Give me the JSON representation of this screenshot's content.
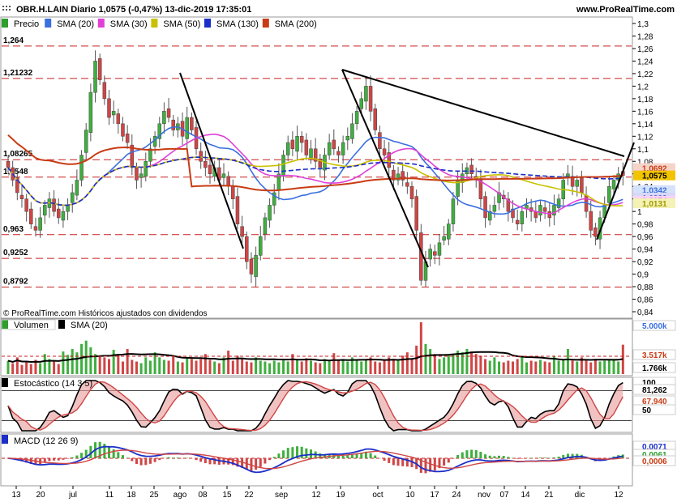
{
  "header": {
    "title": "OBR.H.LAIN Diario 1,0575 (-0,47%) 13-dic-2019 17:35:01",
    "site": "www.ProRealTime.com"
  },
  "price_panel": {
    "legend": [
      {
        "label": "Precio",
        "color": "#2e9e2e"
      },
      {
        "label": "SMA (20)",
        "color": "#3b6fe0"
      },
      {
        "label": "SMA (30)",
        "color": "#e040d8"
      },
      {
        "label": "SMA (50)",
        "color": "#c8c000"
      },
      {
        "label": "SMA (130)",
        "color": "#1a2ec8"
      },
      {
        "label": "SMA (200)",
        "color": "#c83c14"
      }
    ],
    "copyright": "© ProRealTime.com Históricos ajustados con dividendos",
    "levels": [
      {
        "label": "1,264",
        "value": 1.264
      },
      {
        "label": "1,21232",
        "value": 1.21232
      },
      {
        "label": "1,08265",
        "value": 1.08265
      },
      {
        "label": "1,0548",
        "value": 1.0548
      },
      {
        "label": "0,963",
        "value": 0.963
      },
      {
        "label": "0,9252",
        "value": 0.9252
      },
      {
        "label": "0,8792",
        "value": 0.8792
      }
    ],
    "right_badges": [
      {
        "label": "1,0692",
        "value": 1.0692,
        "bg": "#f6d4c8",
        "color": "#c83c14"
      },
      {
        "label": "1,0575",
        "value": 1.0575,
        "bg": "#f2c400",
        "color": "#000000"
      },
      {
        "label": "1,0342",
        "value": 1.0342,
        "bg": "#d6e2fb",
        "color": "#3b6fe0"
      },
      {
        "label": "1,0222",
        "value": 1.0222,
        "bg": "#d6d8f6",
        "color": "#1a2ec8"
      },
      {
        "label": "1,0174",
        "value": 1.0174,
        "bg": "#f6d4f4",
        "color": "#e040d8"
      },
      {
        "label": "1,0131",
        "value": 1.0131,
        "bg": "#f4f2b4",
        "color": "#a09a00"
      }
    ]
  },
  "volume_panel": {
    "legend": [
      {
        "label": "Volumen",
        "color": "#2e9e2e"
      },
      {
        "label": "SMA (20)",
        "color": "#000000"
      }
    ],
    "badges": [
      {
        "label": "5.000k",
        "color": "#3b6fe0"
      },
      {
        "label": "3.517k",
        "color": "#c83c14"
      },
      {
        "label": "1.766k",
        "color": "#000000"
      }
    ]
  },
  "stoch_panel": {
    "legend": "Estocástico (14 3 5)",
    "badges": [
      {
        "label": "100",
        "color": "#000000"
      },
      {
        "label": "81,262",
        "color": "#000000"
      },
      {
        "label": "67,940",
        "color": "#c83c14"
      },
      {
        "label": "50",
        "color": "#000000"
      }
    ]
  },
  "macd_panel": {
    "legend": "MACD (12 26 9)",
    "badges": [
      {
        "label": "0,0071",
        "color": "#1a2ec8"
      },
      {
        "label": "0,0061",
        "color": "#2e9e2e"
      },
      {
        "label": "0,0006",
        "color": "#c83c14"
      }
    ]
  },
  "chart_data": {
    "type": "candlestick",
    "title": "OBR.H.LAIN Diario",
    "x_tick_labels": [
      "13",
      "20",
      "jul",
      "11",
      "18",
      "25",
      "ago",
      "08",
      "15",
      "22",
      "sep",
      "12",
      "19",
      "oct",
      "10",
      "17",
      "24",
      "nov",
      "07",
      "14",
      "21",
      "dic",
      "12"
    ],
    "ylim": [
      0.84,
      1.3
    ],
    "y_ticks": [
      "0,84",
      "0,86",
      "0,88",
      "0,9",
      "0,92",
      "0,94",
      "0,96",
      "0,98",
      "1",
      "1,02",
      "1,04",
      "1,06",
      "1,08",
      "1,1",
      "1,12",
      "1,14",
      "1,16",
      "1,18",
      "1,2",
      "1,22",
      "1,24",
      "1,26",
      "1,28",
      "1,3"
    ],
    "last_close": 1.0575,
    "close_series": [
      1.07,
      1.05,
      1.03,
      1.02,
      1.0,
      0.98,
      0.97,
      0.99,
      1.01,
      1.02,
      1.0,
      0.99,
      1.0,
      1.01,
      1.03,
      1.05,
      1.09,
      1.13,
      1.19,
      1.24,
      1.21,
      1.18,
      1.15,
      1.16,
      1.14,
      1.12,
      1.11,
      1.07,
      1.05,
      1.06,
      1.08,
      1.1,
      1.12,
      1.14,
      1.16,
      1.15,
      1.13,
      1.14,
      1.12,
      1.15,
      1.13,
      1.1,
      1.08,
      1.07,
      1.06,
      1.07,
      1.05,
      1.06,
      1.04,
      1.02,
      0.98,
      0.96,
      0.92,
      0.9,
      0.93,
      0.96,
      0.99,
      1.01,
      1.03,
      1.06,
      1.09,
      1.11,
      1.1,
      1.12,
      1.11,
      1.09,
      1.1,
      1.08,
      1.07,
      1.09,
      1.11,
      1.1,
      1.09,
      1.11,
      1.12,
      1.14,
      1.16,
      1.18,
      1.2,
      1.16,
      1.13,
      1.1,
      1.09,
      1.07,
      1.05,
      1.06,
      1.05,
      1.04,
      1.02,
      0.97,
      0.89,
      0.92,
      0.94,
      0.93,
      0.95,
      0.96,
      0.98,
      1.02,
      1.05,
      1.06,
      1.07,
      1.06,
      1.05,
      1.02,
      0.99,
      1.0,
      1.01,
      1.03,
      1.02,
      1.0,
      0.99,
      0.98,
      1.0,
      1.01,
      1.0,
      0.99,
      1.01,
      1.0,
      0.99,
      1.01,
      1.02,
      1.05,
      1.06,
      1.04,
      1.05,
      1.03,
      1.0,
      0.97,
      0.96,
      0.99,
      1.01,
      1.04,
      1.05,
      1.06,
      1.0575
    ],
    "volume_series": [
      1.6,
      1.3,
      2.0,
      1.1,
      1.5,
      1.2,
      1.7,
      1.3,
      2.4,
      1.8,
      1.6,
      1.2,
      2.7,
      2.3,
      3.0,
      2.6,
      3.6,
      4.0,
      3.2,
      2.4,
      2.2,
      2.0,
      1.8,
      2.9,
      2.4,
      1.5,
      3.0,
      1.7,
      1.5,
      1.3,
      2.0,
      1.6,
      2.6,
      2.0,
      1.7,
      1.6,
      2.2,
      1.5,
      1.4,
      2.0,
      1.8,
      1.6,
      1.8,
      2.4,
      1.7,
      1.5,
      1.3,
      2.0,
      2.8,
      1.6,
      2.2,
      1.8,
      1.5,
      1.4,
      2.0,
      1.6,
      1.5,
      1.3,
      1.6,
      1.4,
      1.8,
      1.5,
      2.4,
      1.7,
      1.5,
      1.9,
      1.6,
      1.4,
      1.3,
      1.8,
      1.6,
      2.5,
      1.7,
      1.8,
      1.5,
      2.0,
      1.6,
      1.5,
      1.8,
      2.0,
      1.5,
      1.4,
      1.6,
      2.0,
      1.8,
      1.6,
      2.2,
      2.6,
      1.8,
      3.4,
      6.2,
      3.6,
      3.0,
      2.4,
      1.8,
      2.0,
      2.2,
      2.4,
      2.8,
      2.6,
      3.0,
      2.7,
      2.4,
      2.2,
      1.8,
      1.6,
      2.0,
      1.5,
      1.4,
      1.6,
      1.5,
      1.8,
      2.0,
      1.4,
      1.6,
      1.5,
      1.7,
      1.5,
      1.4,
      2.2,
      1.6,
      1.7,
      3.0,
      1.6,
      1.5,
      2.0,
      1.6,
      1.4,
      1.8,
      1.5,
      1.6,
      1.7,
      1.8,
      1.5,
      3.517
    ]
  }
}
